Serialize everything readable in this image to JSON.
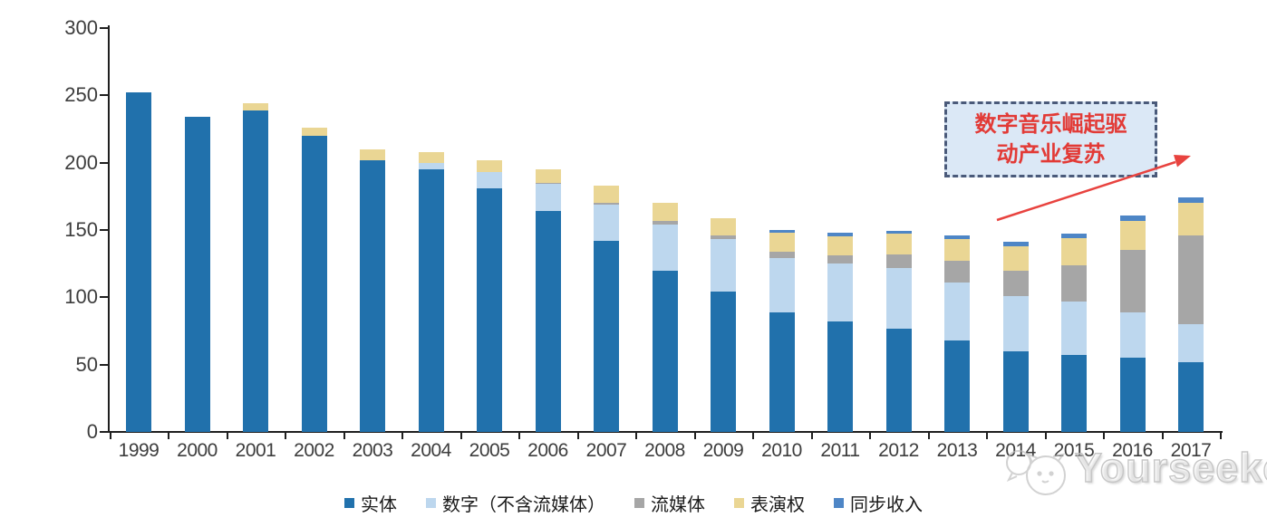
{
  "chart_data": {
    "type": "bar",
    "stacked": true,
    "title": "",
    "xlabel": "",
    "ylabel": "",
    "ylim": [
      0,
      300
    ],
    "yticks": [
      0,
      50,
      100,
      150,
      200,
      250,
      300
    ],
    "grid": false,
    "legend_position": "bottom",
    "categories": [
      "1999",
      "2000",
      "2001",
      "2002",
      "2003",
      "2004",
      "2005",
      "2006",
      "2007",
      "2008",
      "2009",
      "2010",
      "2011",
      "2012",
      "2013",
      "2014",
      "2015",
      "2016",
      "2017"
    ],
    "series": [
      {
        "name": "实体",
        "color": "#2171AC",
        "values": [
          252,
          234,
          239,
          220,
          202,
          195,
          181,
          164,
          142,
          120,
          104,
          89,
          82,
          77,
          68,
          60,
          57,
          55,
          52
        ]
      },
      {
        "name": "数字（不含流媒体）",
        "color": "#BDD7EE",
        "values": [
          0,
          0,
          0,
          0,
          0,
          5,
          12,
          20,
          27,
          34,
          39,
          40,
          43,
          45,
          43,
          41,
          40,
          34,
          28
        ]
      },
      {
        "name": "流媒体",
        "color": "#A6A6A6",
        "values": [
          0,
          0,
          0,
          0,
          0,
          0,
          0,
          1,
          1,
          3,
          3,
          5,
          6,
          10,
          16,
          19,
          27,
          46,
          66
        ]
      },
      {
        "name": "表演权",
        "color": "#EAD694",
        "values": [
          0,
          0,
          5,
          6,
          8,
          8,
          9,
          10,
          13,
          13,
          13,
          14,
          14,
          15,
          16,
          18,
          20,
          22,
          24
        ]
      },
      {
        "name": "同步收入",
        "color": "#4E86C6",
        "values": [
          0,
          0,
          0,
          0,
          0,
          0,
          0,
          0,
          0,
          0,
          0,
          2,
          3,
          2,
          3,
          3,
          3,
          4,
          4
        ]
      }
    ]
  },
  "annotation": {
    "text": "数字音乐崛起驱动产业复苏"
  },
  "watermark": {
    "text": "Yourseeker",
    "logo": "cat-chat-logo"
  },
  "colors": {
    "background": "#FFFFFF",
    "axis": "#1F1F1F",
    "tick_label": "#3D3D3D",
    "annotation_bg": "#DBE8F6",
    "annotation_border": "#4A5A7A",
    "annotation_text": "#E23A36",
    "arrow": "#E8433F",
    "watermark": "#BDBDBD"
  }
}
